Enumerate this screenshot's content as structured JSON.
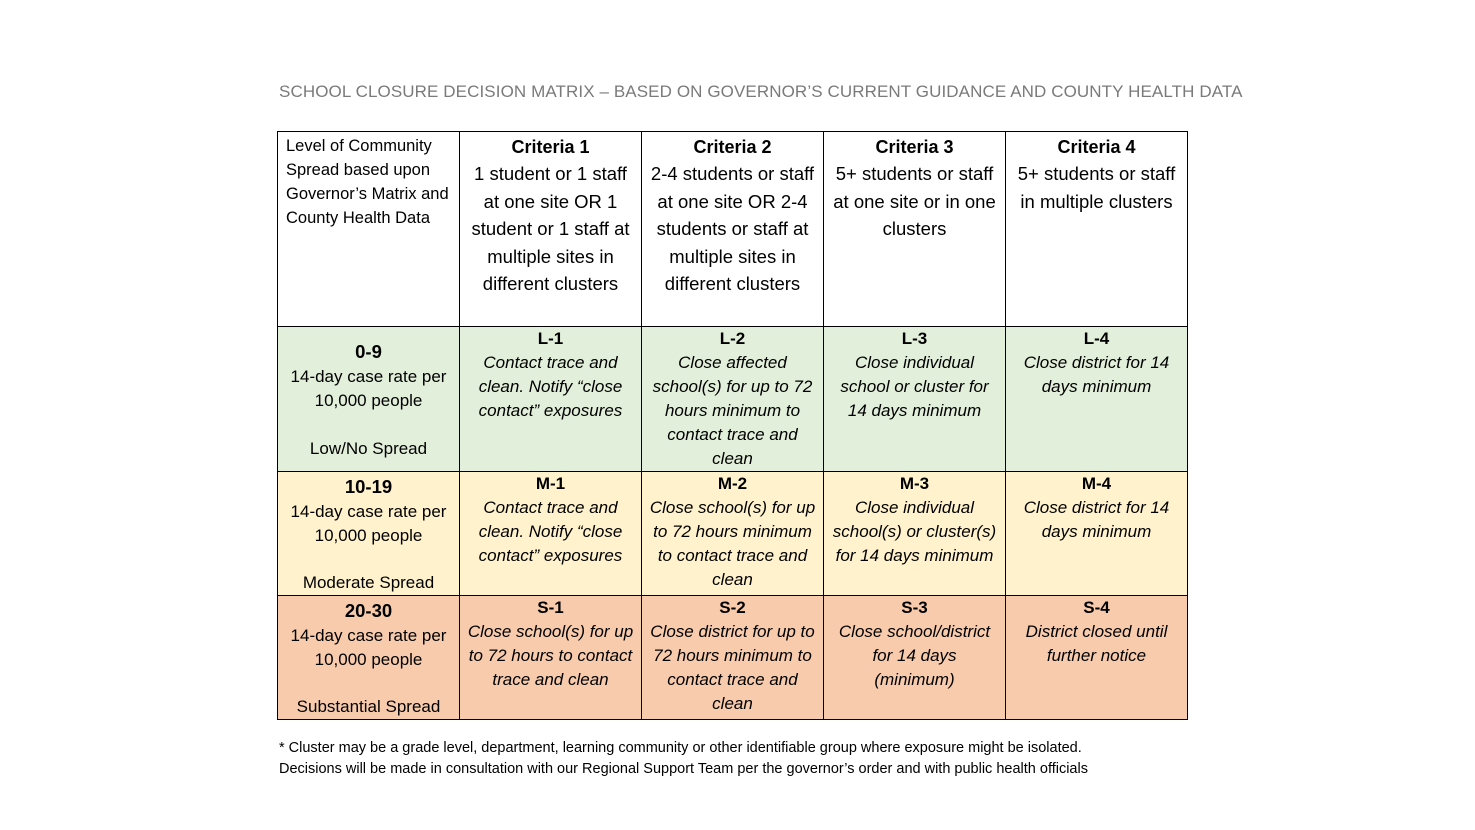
{
  "title": "SCHOOL CLOSURE DECISION MATRIX – BASED ON GOVERNOR’S CURRENT GUIDANCE AND COUNTY HEALTH DATA",
  "table": {
    "corner_header": "Level of Community Spread based upon Governor’s Matrix and County Health Data",
    "criteria": [
      {
        "title": "Criteria 1",
        "description": "1 student or 1 staff at one site OR 1 student or 1 staff at multiple sites in different clusters"
      },
      {
        "title": "Criteria 2",
        "description": "2-4 students or staff at one site OR 2-4 students or staff at multiple sites in different clusters"
      },
      {
        "title": "Criteria 3",
        "description": "5+ students or staff at one site or in one clusters"
      },
      {
        "title": "Criteria 4",
        "description": "5+ students or staff in multiple clusters"
      }
    ],
    "levels": [
      {
        "range": "0-9",
        "rate": "14-day case rate per 10,000 people",
        "spread": "Low/No Spread",
        "color": "#e2efda",
        "cells": [
          {
            "code": "L-1",
            "action": "Contact trace and clean. Notify “close contact” exposures"
          },
          {
            "code": "L-2",
            "action": "Close affected school(s) for up to 72 hours minimum to contact trace and clean"
          },
          {
            "code": "L-3",
            "action": "Close individual school or cluster for 14 days minimum"
          },
          {
            "code": "L-4",
            "action": "Close district for 14 days minimum"
          }
        ]
      },
      {
        "range": "10-19",
        "rate": "14-day case rate per 10,000 people",
        "spread": "Moderate Spread",
        "color": "#fff2cc",
        "cells": [
          {
            "code": "M-1",
            "action": "Contact trace and clean. Notify “close contact” exposures"
          },
          {
            "code": "M-2",
            "action": "Close school(s) for up to 72 hours minimum to contact trace and clean"
          },
          {
            "code": "M-3",
            "action": "Close individual school(s) or cluster(s) for 14 days minimum"
          },
          {
            "code": "M-4",
            "action": "Close district for 14 days minimum"
          }
        ]
      },
      {
        "range": "20-30",
        "rate": "14-day case rate per 10,000 people",
        "spread": "Substantial Spread",
        "color": "#f8cbad",
        "cells": [
          {
            "code": "S-1",
            "action": "Close school(s) for up to 72 hours to contact trace and clean"
          },
          {
            "code": "S-2",
            "action": "Close district for up to 72 hours minimum to contact trace and clean"
          },
          {
            "code": "S-3",
            "action": "Close school/district for 14 days (minimum)"
          },
          {
            "code": "S-4",
            "action": "District closed until further notice"
          }
        ]
      }
    ]
  },
  "footnote": {
    "line1": "* Cluster may be a grade level, department, learning community or other identifiable group where exposure might be isolated.",
    "line2": "Decisions will be made in consultation with our Regional Support Team per the governor’s order and with public health officials"
  }
}
